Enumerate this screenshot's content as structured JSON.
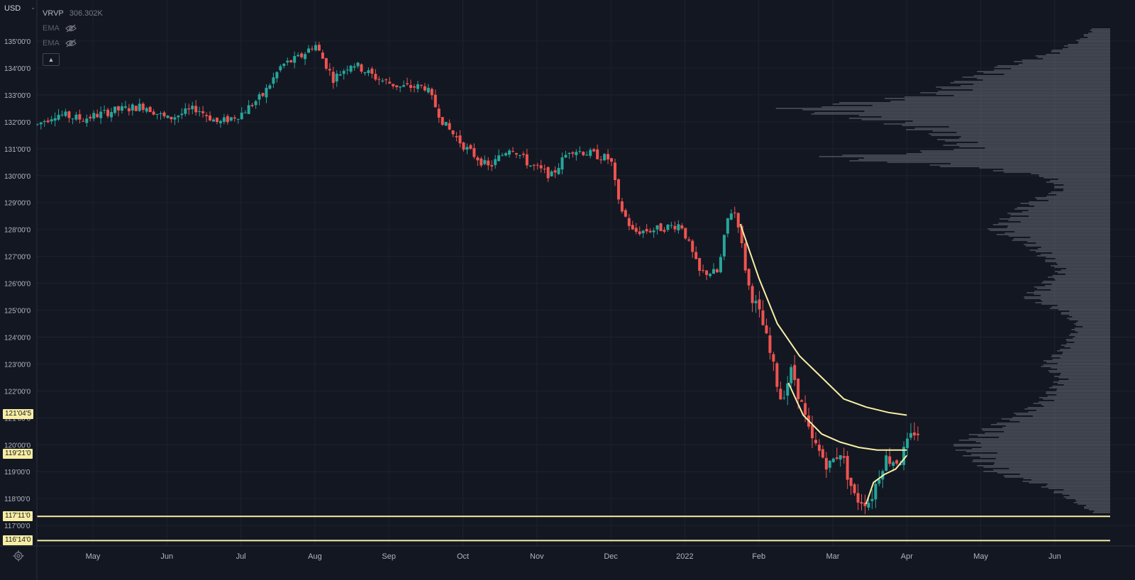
{
  "header": {
    "currency": "USD",
    "indicators": [
      {
        "name": "VRVP",
        "value": "306.302K",
        "hidden": false
      },
      {
        "name": "EMA",
        "hidden": true
      },
      {
        "name": "EMA",
        "hidden": true
      }
    ]
  },
  "price_tags": [
    {
      "label": "121'04'5",
      "price": 121.14,
      "color": "#f8eea3"
    },
    {
      "label": "119'21'0",
      "price": 119.66,
      "color": "#f8eea3"
    },
    {
      "label": "117'11'0",
      "price": 117.34,
      "color": "#f8eea3"
    },
    {
      "label": "116'14'0",
      "price": 116.44,
      "color": "#f8eea3"
    }
  ],
  "colors": {
    "up": "#26a69a",
    "down": "#ef5350",
    "ema": "#f8eea3",
    "profile": "#787b86",
    "grid": "#1e222d",
    "bg": "#131722"
  },
  "chart_data": {
    "type": "candlestick",
    "y_axis": {
      "ticks": [
        "135'00'0",
        "134'00'0",
        "133'00'0",
        "132'00'0",
        "131'00'0",
        "130'00'0",
        "129'00'0",
        "128'00'0",
        "127'00'0",
        "126'00'0",
        "125'00'0",
        "124'00'0",
        "123'00'0",
        "122'00'0",
        "121'00'0",
        "120'00'0",
        "119'00'0",
        "118'00'0",
        "117'00'0"
      ],
      "tick_values": [
        135,
        134,
        133,
        132,
        131,
        130,
        129,
        128,
        127,
        126,
        125,
        124,
        123,
        122,
        121,
        120,
        119,
        118,
        117
      ],
      "range": [
        116.1,
        136.1
      ]
    },
    "x_axis": {
      "ticks": [
        "May",
        "Jun",
        "Jul",
        "Aug",
        "Sep",
        "Oct",
        "Nov",
        "Dec",
        "2022",
        "Feb",
        "Mar",
        "Apr",
        "May",
        "Jun"
      ],
      "range_months": [
        3.2,
        13.6
      ]
    },
    "trend_points": [
      {
        "m": 3.25,
        "p": 131.9
      },
      {
        "m": 3.5,
        "p": 132.3
      },
      {
        "m": 3.85,
        "p": 132.1
      },
      {
        "m": 4.25,
        "p": 132.4
      },
      {
        "m": 4.7,
        "p": 132.6
      },
      {
        "m": 5.0,
        "p": 132.1
      },
      {
        "m": 5.4,
        "p": 132.5
      },
      {
        "m": 5.7,
        "p": 131.95
      },
      {
        "m": 6.0,
        "p": 132.3
      },
      {
        "m": 6.3,
        "p": 133.0
      },
      {
        "m": 6.55,
        "p": 134.1
      },
      {
        "m": 6.8,
        "p": 134.4
      },
      {
        "m": 7.0,
        "p": 134.9
      },
      {
        "m": 7.25,
        "p": 133.6
      },
      {
        "m": 7.5,
        "p": 134.2
      },
      {
        "m": 7.85,
        "p": 133.6
      },
      {
        "m": 8.15,
        "p": 133.3
      },
      {
        "m": 8.5,
        "p": 133.3
      },
      {
        "m": 8.75,
        "p": 131.9
      },
      {
        "m": 9.05,
        "p": 131.0
      },
      {
        "m": 9.35,
        "p": 130.3
      },
      {
        "m": 9.65,
        "p": 131.1
      },
      {
        "m": 9.9,
        "p": 130.4
      },
      {
        "m": 10.2,
        "p": 130.0
      },
      {
        "m": 10.45,
        "p": 131.0
      },
      {
        "m": 10.75,
        "p": 130.8
      },
      {
        "m": 11.0,
        "p": 130.6
      },
      {
        "m": 11.1,
        "p": 129.0
      },
      {
        "m": 11.3,
        "p": 127.9
      },
      {
        "m": 11.6,
        "p": 128.0
      },
      {
        "m": 11.95,
        "p": 128.2
      },
      {
        "m": 12.2,
        "p": 126.4
      },
      {
        "m": 12.45,
        "p": 126.4
      },
      {
        "m": 12.6,
        "p": 128.7
      },
      {
        "m": 12.7,
        "p": 128.6
      },
      {
        "m": 12.85,
        "p": 126.0
      },
      {
        "m": 13.05,
        "p": 124.5
      },
      {
        "m": 13.3,
        "p": 121.7
      },
      {
        "m": 13.45,
        "p": 122.8
      },
      {
        "m": 13.7,
        "p": 120.2
      },
      {
        "m": 13.95,
        "p": 119.2
      },
      {
        "m": 14.1,
        "p": 119.8
      },
      {
        "m": 14.3,
        "p": 118.0
      },
      {
        "m": 14.5,
        "p": 117.9
      },
      {
        "m": 14.7,
        "p": 119.5
      },
      {
        "m": 14.9,
        "p": 119.4
      },
      {
        "m": 15.1,
        "p": 120.5
      },
      {
        "m": 15.2,
        "p": 120.4
      }
    ],
    "ema_long": [
      {
        "m": 12.75,
        "p": 128.2
      },
      {
        "m": 13.0,
        "p": 126.2
      },
      {
        "m": 13.25,
        "p": 124.5
      },
      {
        "m": 13.55,
        "p": 123.3
      },
      {
        "m": 13.85,
        "p": 122.5
      },
      {
        "m": 14.15,
        "p": 121.7
      },
      {
        "m": 14.45,
        "p": 121.4
      },
      {
        "m": 14.75,
        "p": 121.2
      },
      {
        "m": 15.0,
        "p": 121.1
      }
    ],
    "ema_mid": [
      {
        "m": 13.4,
        "p": 122.3
      },
      {
        "m": 13.6,
        "p": 121.1
      },
      {
        "m": 13.85,
        "p": 120.4
      },
      {
        "m": 14.1,
        "p": 120.1
      },
      {
        "m": 14.35,
        "p": 119.9
      },
      {
        "m": 14.6,
        "p": 119.8
      },
      {
        "m": 14.85,
        "p": 119.8
      },
      {
        "m": 15.0,
        "p": 119.8
      }
    ],
    "ema_short": [
      {
        "m": 14.45,
        "p": 117.8
      },
      {
        "m": 14.55,
        "p": 118.6
      },
      {
        "m": 14.7,
        "p": 118.9
      },
      {
        "m": 14.85,
        "p": 119.1
      },
      {
        "m": 15.0,
        "p": 119.6
      }
    ],
    "volume_profile": [
      {
        "p": 135.5,
        "w": 0.05
      },
      {
        "p": 135.0,
        "w": 0.1
      },
      {
        "p": 134.5,
        "w": 0.2
      },
      {
        "p": 134.0,
        "w": 0.35
      },
      {
        "p": 133.5,
        "w": 0.45
      },
      {
        "p": 133.0,
        "w": 0.55
      },
      {
        "p": 132.5,
        "w": 0.95
      },
      {
        "p": 132.0,
        "w": 0.65
      },
      {
        "p": 131.5,
        "w": 0.5
      },
      {
        "p": 131.0,
        "w": 0.45
      },
      {
        "p": 130.7,
        "w": 0.88
      },
      {
        "p": 130.3,
        "w": 0.4
      },
      {
        "p": 130.0,
        "w": 0.2
      },
      {
        "p": 129.5,
        "w": 0.15
      },
      {
        "p": 129.0,
        "w": 0.25
      },
      {
        "p": 128.5,
        "w": 0.3
      },
      {
        "p": 128.0,
        "w": 0.35
      },
      {
        "p": 127.5,
        "w": 0.25
      },
      {
        "p": 127.0,
        "w": 0.2
      },
      {
        "p": 126.5,
        "w": 0.15
      },
      {
        "p": 126.0,
        "w": 0.2
      },
      {
        "p": 125.5,
        "w": 0.25
      },
      {
        "p": 125.0,
        "w": 0.15
      },
      {
        "p": 124.5,
        "w": 0.1
      },
      {
        "p": 124.0,
        "w": 0.12
      },
      {
        "p": 123.5,
        "w": 0.15
      },
      {
        "p": 123.0,
        "w": 0.2
      },
      {
        "p": 122.5,
        "w": 0.15
      },
      {
        "p": 122.0,
        "w": 0.18
      },
      {
        "p": 121.5,
        "w": 0.22
      },
      {
        "p": 121.0,
        "w": 0.3
      },
      {
        "p": 120.5,
        "w": 0.38
      },
      {
        "p": 120.0,
        "w": 0.45
      },
      {
        "p": 119.5,
        "w": 0.4
      },
      {
        "p": 119.0,
        "w": 0.35
      },
      {
        "p": 118.5,
        "w": 0.2
      },
      {
        "p": 118.0,
        "w": 0.12
      },
      {
        "p": 117.5,
        "w": 0.05
      }
    ],
    "horizontal_levels": [
      117.34,
      116.44
    ]
  }
}
